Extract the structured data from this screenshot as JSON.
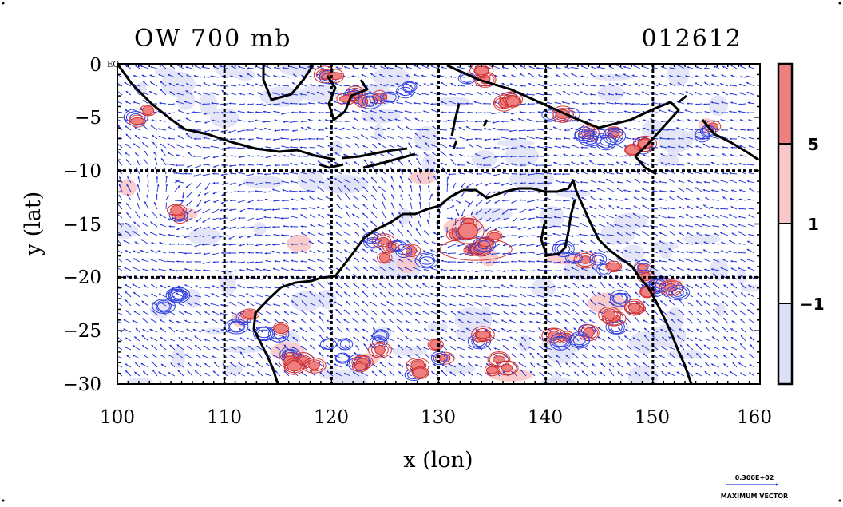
{
  "title": {
    "field": "OW 700 mb",
    "date": "012612"
  },
  "axes": {
    "xlabel": "x (lon)",
    "ylabel": "y (lat)",
    "x_ticks": [
      "100",
      "110",
      "120",
      "130",
      "140",
      "150",
      "160"
    ],
    "y_ticks": [
      "0",
      "−5",
      "−10",
      "−15",
      "−20",
      "−25",
      "−30"
    ],
    "y_zero_suffix": "EQ"
  },
  "colorbar": {
    "labels": [
      "5",
      "1",
      "−1"
    ],
    "colors": {
      "strong_pos": "#f08080",
      "weak_pos": "#f9c8c8",
      "neutral": "#ffffff",
      "neg": "#dde0f6"
    }
  },
  "vector_key": {
    "magnitude": "0.300E+02",
    "label": "MAXIMUM VECTOR"
  },
  "chart_data": {
    "type": "contour-vector map",
    "xlim": [
      100,
      160
    ],
    "ylim": [
      -30,
      0
    ],
    "grid_lon": [
      110,
      120,
      130,
      140,
      150
    ],
    "grid_lat": [
      -10,
      -20
    ],
    "grid": "on",
    "legend_position": "right",
    "colors": {
      "coast": "#000000",
      "vectors": "#1e2fd8",
      "positive_contour": "#d03030",
      "negative_contour": "#3040e0"
    }
  }
}
